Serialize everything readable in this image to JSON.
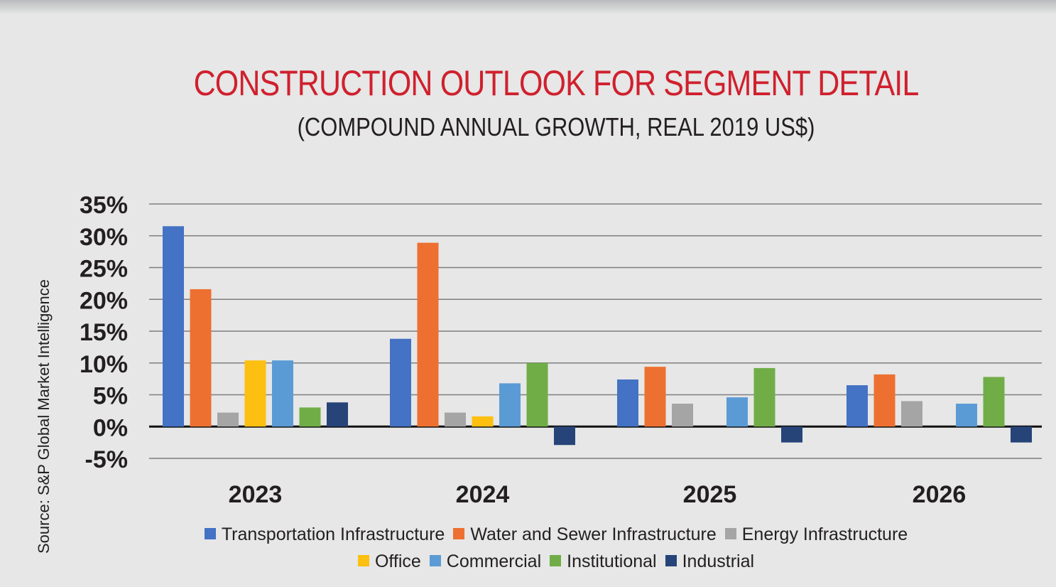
{
  "header": {
    "title": "CONSTRUCTION OUTLOOK FOR SEGMENT DETAIL",
    "subtitle": "(COMPOUND ANNUAL GROWTH, REAL 2019 US$)"
  },
  "source": "Source: S&P Global Market Intelligence",
  "chart_data": {
    "type": "bar",
    "title": "CONSTRUCTION OUTLOOK FOR SEGMENT DETAIL",
    "subtitle": "(COMPOUND ANNUAL GROWTH, REAL 2019 US$)",
    "xlabel": "",
    "ylabel": "",
    "ylim": [
      -5,
      35
    ],
    "yticks": [
      35,
      30,
      25,
      20,
      15,
      10,
      5,
      0,
      -5
    ],
    "ytick_labels": [
      "35%",
      "30%",
      "25%",
      "20%",
      "15%",
      "10%",
      "5%",
      "0%",
      "-5%"
    ],
    "grid": true,
    "legend_position": "bottom-center",
    "categories": [
      "2023",
      "2024",
      "2025",
      "2026"
    ],
    "series": [
      {
        "name": "Transportation Infrastructure",
        "color": "#4472c4",
        "values": [
          31.5,
          13.8,
          7.4,
          6.5
        ]
      },
      {
        "name": "Water and Sewer Infrastructure",
        "color": "#ed7031",
        "values": [
          21.6,
          28.9,
          9.4,
          8.2
        ]
      },
      {
        "name": "Energy Infrastructure",
        "color": "#a5a5a5",
        "values": [
          2.2,
          2.2,
          3.6,
          4.0
        ]
      },
      {
        "name": "Office",
        "color": "#fdbf10",
        "values": [
          10.4,
          1.6,
          null,
          null
        ]
      },
      {
        "name": "Commercial",
        "color": "#5b9bd5",
        "values": [
          10.4,
          6.8,
          4.6,
          3.6
        ]
      },
      {
        "name": "Institutional",
        "color": "#70ad47",
        "values": [
          3.0,
          10.0,
          9.2,
          7.8
        ]
      },
      {
        "name": "Industrial",
        "color": "#264478",
        "values": [
          3.8,
          -2.9,
          -2.5,
          -2.5
        ]
      }
    ]
  }
}
